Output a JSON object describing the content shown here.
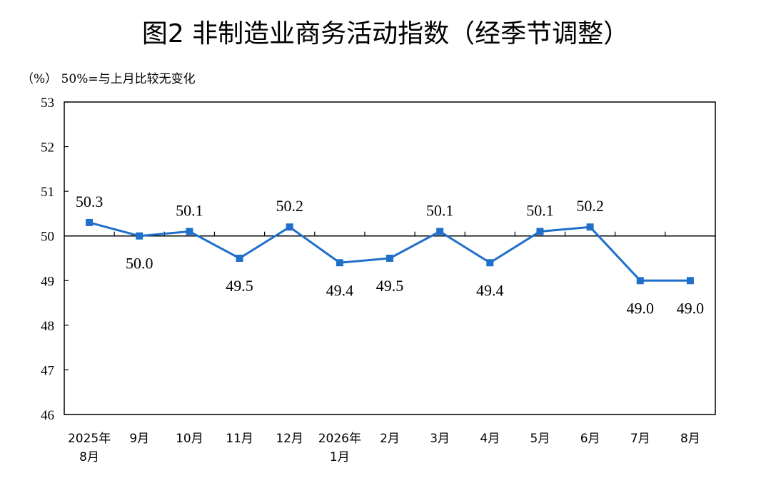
{
  "title": "图2  非制造业商务活动指数（经季节调整）",
  "unit_note": "（%）  50%=与上月比较无变化",
  "colors": {
    "line": "#1f6fcb",
    "axis": "#000000"
  },
  "chart_data": {
    "type": "line",
    "title": "图2  非制造业商务活动指数（经季节调整）",
    "ylabel": "（%）",
    "reference_line": 50,
    "ylim": [
      46,
      53
    ],
    "yticks": [
      46,
      47,
      48,
      49,
      50,
      51,
      52,
      53
    ],
    "categories": [
      [
        "2025年",
        "8月"
      ],
      [
        "9月"
      ],
      [
        "10月"
      ],
      [
        "11月"
      ],
      [
        "12月"
      ],
      [
        "2026年",
        "1月"
      ],
      [
        "2月"
      ],
      [
        "3月"
      ],
      [
        "4月"
      ],
      [
        "5月"
      ],
      [
        "6月"
      ],
      [
        "7月"
      ],
      [
        "8月"
      ]
    ],
    "series": [
      {
        "values": [
          50.3,
          50.0,
          50.1,
          49.5,
          50.2,
          49.4,
          49.5,
          50.1,
          49.4,
          50.1,
          50.2,
          49.0,
          49.0
        ],
        "labels": [
          "50.3",
          "50.0",
          "50.1",
          "49.5",
          "50.2",
          "49.4",
          "49.5",
          "50.1",
          "49.4",
          "50.1",
          "50.2",
          "49.0",
          "49.0"
        ]
      }
    ],
    "grid": false,
    "legend": "none"
  }
}
